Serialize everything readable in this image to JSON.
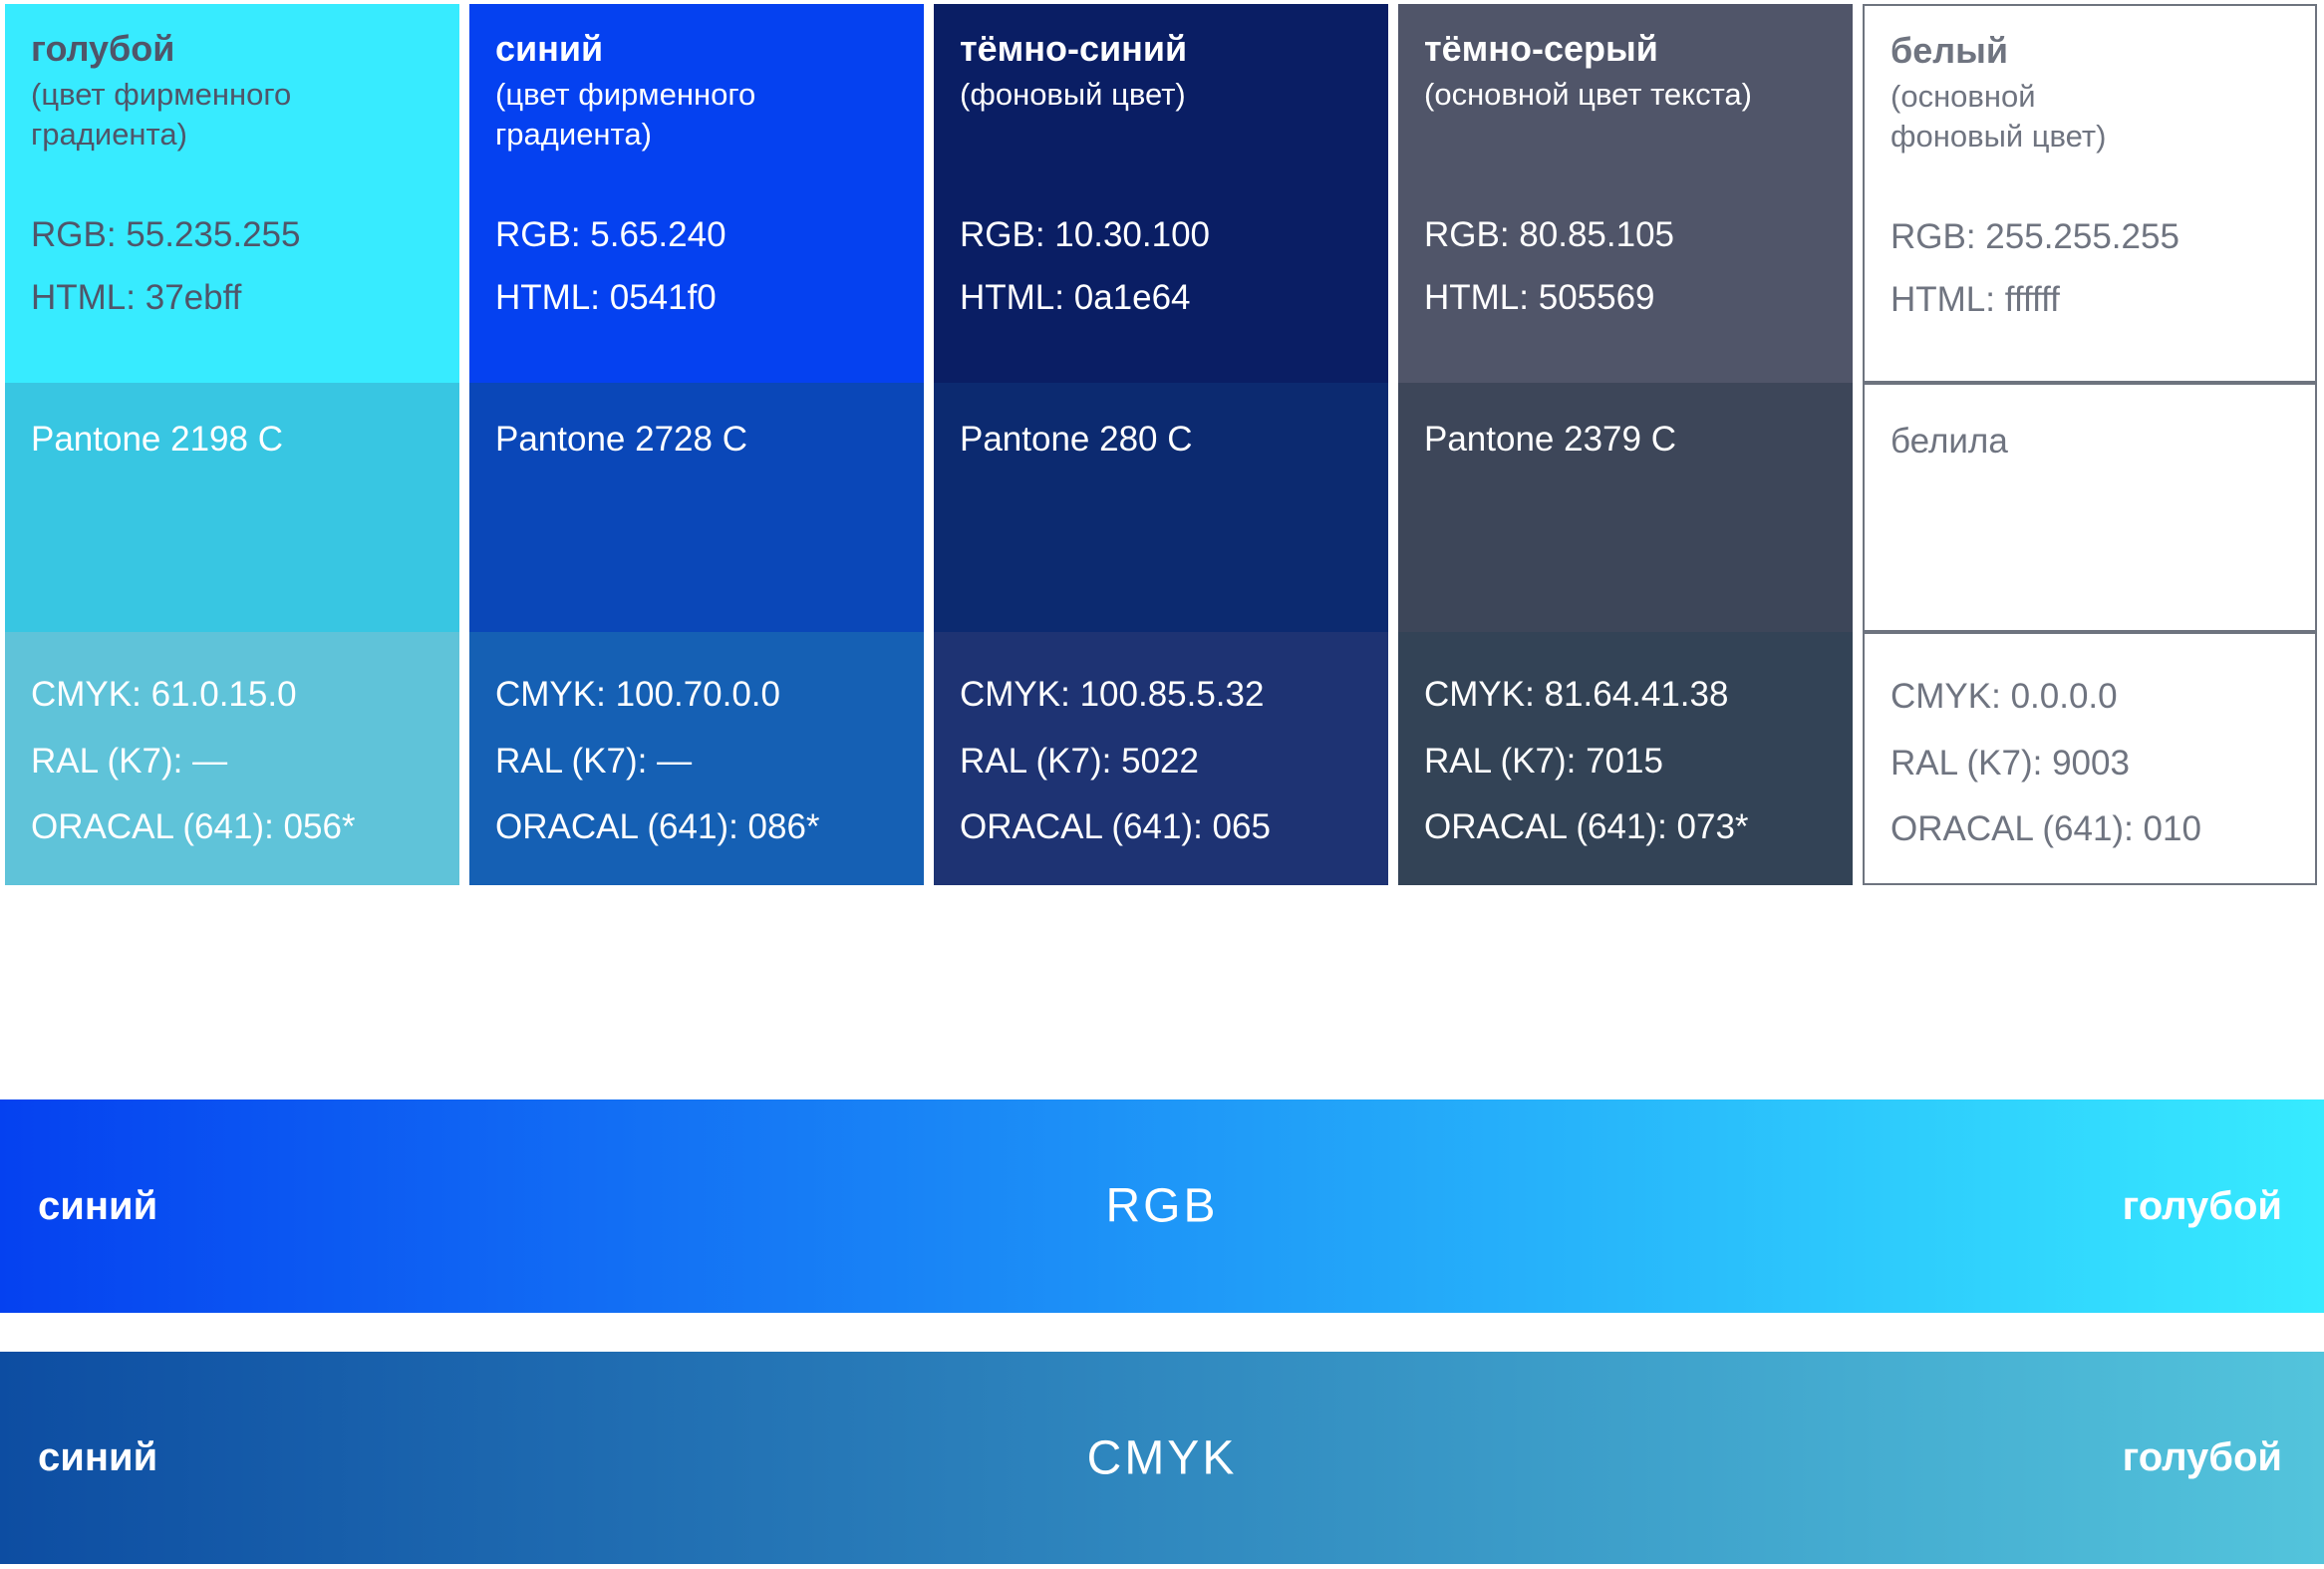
{
  "palette": {
    "columns": [
      {
        "name": "голубой",
        "description": "(цвет фирменного\nградиента)",
        "rgb": "RGB: 55.235.255",
        "html": "HTML: 37ebff",
        "pantone": "Pantone 2198 C",
        "cmyk": "CMYK: 61.0.15.0",
        "ral": "RAL (K7): —",
        "oracal": "ORACAL (641): 056*",
        "row1_style": "background:#37ebff;color:#505569",
        "row2_style": "background:#38c6e2;color:#ffffff",
        "row3_style": "background:#5fc3d9;color:#ffffff"
      },
      {
        "name": "синий",
        "description": "(цвет фирменного\nградиента)",
        "rgb": "RGB: 5.65.240",
        "html": "HTML: 0541f0",
        "pantone": "Pantone 2728 C",
        "cmyk": "CMYK: 100.70.0.0",
        "ral": "RAL (K7): —",
        "oracal": "ORACAL (641): 086*",
        "row1_style": "background:#0541f0;color:#ffffff",
        "row2_style": "background:#0a47b8;color:#ffffff",
        "row3_style": "background:#1560b4;color:#ffffff"
      },
      {
        "name": "тёмно-синий",
        "description": "(фоновый цвет)",
        "rgb": "RGB: 10.30.100",
        "html": "HTML: 0a1e64",
        "pantone": "Pantone 280 C",
        "cmyk": "CMYK: 100.85.5.32",
        "ral": "RAL (K7): 5022",
        "oracal": "ORACAL (641): 065",
        "row1_style": "background:#0a1e64;color:#ffffff",
        "row2_style": "background:#0c2a70;color:#ffffff",
        "row3_style": "background:#1e3373;color:#ffffff"
      },
      {
        "name": "тёмно-серый",
        "description": "(основной цвет текста)",
        "rgb": "RGB: 80.85.105",
        "html": "HTML: 505569",
        "pantone": "Pantone 2379 C",
        "cmyk": "CMYK: 81.64.41.38",
        "ral": "RAL (K7): 7015",
        "oracal": "ORACAL (641): 073*",
        "row1_style": "background:#505569;color:#ffffff",
        "row2_style": "background:#3d4659;color:#ffffff",
        "row3_style": "background:#334356;color:#ffffff"
      },
      {
        "name": "белый",
        "description": "(основной\nфоновый цвет)",
        "rgb": "RGB: 255.255.255",
        "html": "HTML: ffffff",
        "pantone": "белила",
        "cmyk": "CMYK: 0.0.0.0",
        "ral": "RAL (K7): 9003",
        "oracal": "ORACAL (641): 010",
        "row1_style": "background:#ffffff;color:#6f7480;border:2px solid #6e747f",
        "row2_style": "background:#ffffff;color:#6f7480;border:2px solid #6e747f",
        "row3_style": "background:#ffffff;color:#6f7480;border:2px solid #6e747f"
      }
    ]
  },
  "gradients": [
    {
      "left_label": "синий",
      "center_label": "RGB",
      "right_label": "голубой",
      "from": "#0541f0",
      "to": "#37ebff",
      "style": "background:linear-gradient(90deg,#0541f0,#37ebff)"
    },
    {
      "left_label": "синий",
      "center_label": "CMYK",
      "right_label": "голубой",
      "from": "#0d4da2",
      "to": "#53c4dc",
      "style": "background:linear-gradient(90deg,#0d4da2,#53c4dc)"
    }
  ]
}
